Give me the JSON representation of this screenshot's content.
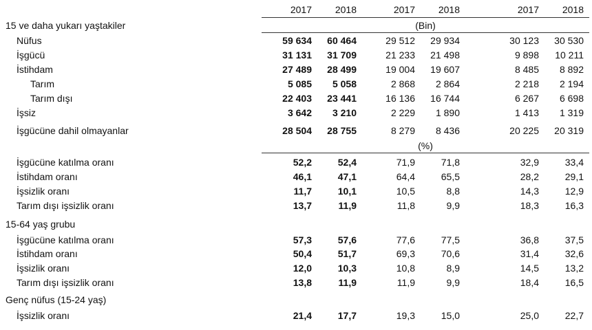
{
  "table": {
    "years": [
      "2017",
      "2018",
      "2017",
      "2018",
      "2017",
      "2018"
    ],
    "rows": [
      {
        "label": "15 ve daha yukarı yaştakiler",
        "unit": "(Bin)"
      },
      {
        "label": "Nüfus",
        "values": [
          "59 634",
          "60 464",
          "29 512",
          "29 934",
          "30 123",
          "30 530"
        ]
      },
      {
        "label": "İşgücü",
        "values": [
          "31 131",
          "31 709",
          "21 233",
          "21 498",
          "9 898",
          "10 211"
        ]
      },
      {
        "label": "İstihdam",
        "values": [
          "27 489",
          "28 499",
          "19 004",
          "19 607",
          "8 485",
          "8 892"
        ]
      },
      {
        "label": "Tarım",
        "values": [
          "5 085",
          "5 058",
          "2 868",
          "2 864",
          "2 218",
          "2 194"
        ]
      },
      {
        "label": "Tarım dışı",
        "values": [
          "22 403",
          "23 441",
          "16 136",
          "16 744",
          "6 267",
          "6 698"
        ]
      },
      {
        "label": "İşsiz",
        "values": [
          "3 642",
          "3 210",
          "2 229",
          "1 890",
          "1 413",
          "1 319"
        ]
      },
      {
        "label": "İşgücüne dahil olmayanlar",
        "values": [
          "28 504",
          "28 755",
          "8 279",
          "8 436",
          "20 225",
          "20 319"
        ]
      },
      {
        "unit": "(%)"
      },
      {
        "label": "İşgücüne katılma oranı",
        "values": [
          "52,2",
          "52,4",
          "71,9",
          "71,8",
          "32,9",
          "33,4"
        ]
      },
      {
        "label": "İstihdam oranı",
        "values": [
          "46,1",
          "47,1",
          "64,4",
          "65,5",
          "28,2",
          "29,1"
        ]
      },
      {
        "label": "İşsizlik oranı",
        "values": [
          "11,7",
          "10,1",
          "10,5",
          "8,8",
          "14,3",
          "12,9"
        ]
      },
      {
        "label": "Tarım dışı işsizlik oranı",
        "values": [
          "13,7",
          "11,9",
          "11,8",
          "9,9",
          "18,3",
          "16,3"
        ]
      },
      {
        "label": "15-64 yaş grubu"
      },
      {
        "label": "İşgücüne katılma oranı",
        "values": [
          "57,3",
          "57,6",
          "77,6",
          "77,5",
          "36,8",
          "37,5"
        ]
      },
      {
        "label": "İstihdam oranı",
        "values": [
          "50,4",
          "51,7",
          "69,3",
          "70,6",
          "31,4",
          "32,6"
        ]
      },
      {
        "label": "İşsizlik oranı",
        "values": [
          "12,0",
          "10,3",
          "10,8",
          "8,9",
          "14,5",
          "13,2"
        ]
      },
      {
        "label": "Tarım dışı işsizlik oranı",
        "values": [
          "13,8",
          "11,9",
          "11,9",
          "9,9",
          "18,4",
          "16,5"
        ]
      },
      {
        "label": "Genç nüfus (15-24 yaş)"
      },
      {
        "label": "İşsizlik oranı",
        "values": [
          "21,4",
          "17,7",
          "19,3",
          "15,0",
          "25,0",
          "22,7"
        ]
      }
    ]
  }
}
